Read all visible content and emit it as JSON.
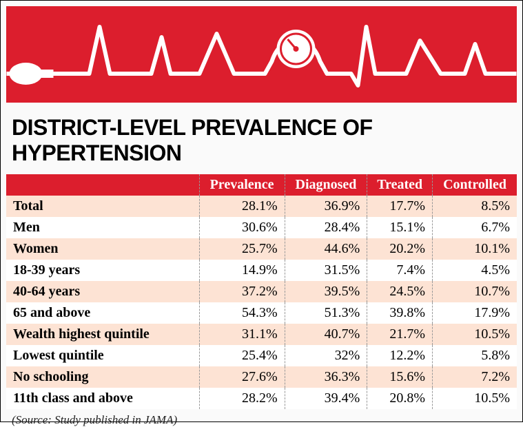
{
  "title": "DISTRICT-LEVEL PREVALENCE OF HYPERTENSION",
  "banner": {
    "background_color": "#dc1e2d",
    "line_color": "#ffffff"
  },
  "table": {
    "header_bg": "#dc1e2d",
    "header_fg": "#ffffff",
    "alt_row_bg": "#fde3d4",
    "columns": [
      "",
      "Prevalence",
      "Diagnosed",
      "Treated",
      "Controlled"
    ],
    "rows": [
      {
        "label": "Total",
        "values": [
          "28.1%",
          "36.9%",
          "17.7%",
          "8.5%"
        ],
        "alt": true
      },
      {
        "label": "Men",
        "values": [
          "30.6%",
          "28.4%",
          "15.1%",
          "6.7%"
        ],
        "alt": false
      },
      {
        "label": "Women",
        "values": [
          "25.7%",
          "44.6%",
          "20.2%",
          "10.1%"
        ],
        "alt": true
      },
      {
        "label": "18-39 years",
        "values": [
          "14.9%",
          "31.5%",
          "7.4%",
          "4.5%"
        ],
        "alt": false
      },
      {
        "label": "40-64 years",
        "values": [
          "37.2%",
          "39.5%",
          "24.5%",
          "10.7%"
        ],
        "alt": true
      },
      {
        "label": "65 and above",
        "values": [
          "54.3%",
          "51.3%",
          "39.8%",
          "17.9%"
        ],
        "alt": false
      },
      {
        "label": "Wealth highest quintile",
        "values": [
          "31.1%",
          "40.7%",
          "21.7%",
          "10.5%"
        ],
        "alt": true
      },
      {
        "label": "Lowest quintile",
        "values": [
          "25.4%",
          "32%",
          "12.2%",
          "5.8%"
        ],
        "alt": false
      },
      {
        "label": "No schooling",
        "values": [
          "27.6%",
          "36.3%",
          "15.6%",
          "7.2%"
        ],
        "alt": true
      },
      {
        "label": "11th class and above",
        "values": [
          "28.2%",
          "39.4%",
          "20.8%",
          "10.5%"
        ],
        "alt": false
      }
    ]
  },
  "source": "(Source: Study published in JAMA)"
}
